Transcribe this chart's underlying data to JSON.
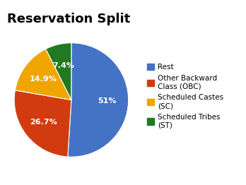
{
  "title": "Reservation Split",
  "labels": [
    "Rest",
    "Other Backward\nClass (OBC)",
    "Scheduled Castes\n(SC)",
    "Scheduled Tribes\n(ST)"
  ],
  "values": [
    51.0,
    26.7,
    14.9,
    7.4
  ],
  "colors": [
    "#4472C4",
    "#D13B0F",
    "#F0A500",
    "#217A21"
  ],
  "autopct_labels": [
    "51%",
    "26.7%",
    "14.9%",
    "7.4%"
  ],
  "startangle": 90,
  "title_fontsize": 13,
  "title_fontweight": "bold",
  "background_color": "#ffffff",
  "legend_fontsize": 7.5,
  "pct_fontsize": 8
}
